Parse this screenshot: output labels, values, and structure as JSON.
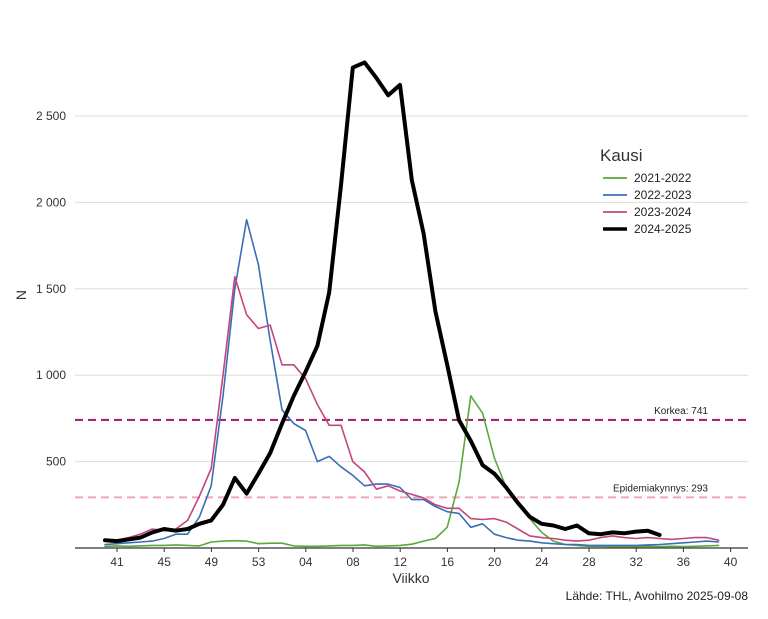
{
  "chart_data": {
    "type": "line",
    "title": "",
    "xlabel": "Viikko",
    "ylabel": "N",
    "caption": "Lähde: THL, Avohilmo 2025-09-08",
    "x_tick_labels": [
      "41",
      "45",
      "49",
      "53",
      "04",
      "08",
      "12",
      "16",
      "20",
      "24",
      "28",
      "32",
      "36",
      "40"
    ],
    "y_ticks": [
      500,
      1000,
      1500,
      2000,
      2500
    ],
    "y_tick_labels": [
      "500",
      "1 000",
      "1 500",
      "2 000",
      "2 500"
    ],
    "ylim": [
      0,
      2800
    ],
    "xlim": [
      1,
      53
    ],
    "grid": "horizontal",
    "legend": {
      "title": "Kausi",
      "position": "right"
    },
    "thresholds": [
      {
        "label": "Korkea: 741",
        "value": 741,
        "color": "#a5247a"
      },
      {
        "label": "Epidemiakynnys: 293",
        "value": 293,
        "color": "#f2a5b5"
      }
    ],
    "series": [
      {
        "name": "2021-2022",
        "color": "#5aa83a",
        "width": 1.6,
        "points": [
          [
            1,
            10
          ],
          [
            2,
            12
          ],
          [
            3,
            10
          ],
          [
            4,
            12
          ],
          [
            5,
            15
          ],
          [
            6,
            15
          ],
          [
            7,
            18
          ],
          [
            8,
            15
          ],
          [
            9,
            12
          ],
          [
            10,
            35
          ],
          [
            11,
            40
          ],
          [
            12,
            42
          ],
          [
            13,
            40
          ],
          [
            14,
            25
          ],
          [
            15,
            28
          ],
          [
            16,
            28
          ],
          [
            17,
            12
          ],
          [
            18,
            10
          ],
          [
            19,
            10
          ],
          [
            20,
            12
          ],
          [
            21,
            15
          ],
          [
            22,
            15
          ],
          [
            23,
            18
          ],
          [
            24,
            10
          ],
          [
            25,
            12
          ],
          [
            26,
            15
          ],
          [
            27,
            22
          ],
          [
            28,
            40
          ],
          [
            29,
            55
          ],
          [
            30,
            120
          ],
          [
            31,
            380
          ],
          [
            32,
            880
          ],
          [
            33,
            780
          ],
          [
            34,
            520
          ],
          [
            35,
            350
          ],
          [
            36,
            260
          ],
          [
            37,
            170
          ],
          [
            38,
            90
          ],
          [
            39,
            40
          ],
          [
            40,
            20
          ],
          [
            41,
            15
          ],
          [
            42,
            10
          ],
          [
            43,
            10
          ],
          [
            44,
            8
          ],
          [
            45,
            8
          ],
          [
            46,
            8
          ],
          [
            47,
            10
          ],
          [
            48,
            8
          ],
          [
            49,
            10
          ],
          [
            50,
            8
          ],
          [
            51,
            10
          ],
          [
            52,
            12
          ],
          [
            53,
            15
          ]
        ]
      },
      {
        "name": "2022-2023",
        "color": "#3a6fb5",
        "width": 1.6,
        "points": [
          [
            1,
            20
          ],
          [
            2,
            25
          ],
          [
            3,
            30
          ],
          [
            4,
            35
          ],
          [
            5,
            40
          ],
          [
            6,
            55
          ],
          [
            7,
            80
          ],
          [
            8,
            80
          ],
          [
            9,
            180
          ],
          [
            10,
            360
          ],
          [
            11,
            880
          ],
          [
            12,
            1500
          ],
          [
            13,
            1900
          ],
          [
            14,
            1640
          ],
          [
            15,
            1200
          ],
          [
            16,
            800
          ],
          [
            17,
            720
          ],
          [
            18,
            680
          ],
          [
            19,
            500
          ],
          [
            20,
            530
          ],
          [
            21,
            470
          ],
          [
            22,
            420
          ],
          [
            23,
            360
          ],
          [
            24,
            370
          ],
          [
            25,
            370
          ],
          [
            26,
            350
          ],
          [
            27,
            280
          ],
          [
            28,
            280
          ],
          [
            29,
            240
          ],
          [
            30,
            210
          ],
          [
            31,
            200
          ],
          [
            32,
            120
          ],
          [
            33,
            140
          ],
          [
            34,
            80
          ],
          [
            35,
            60
          ],
          [
            36,
            45
          ],
          [
            37,
            40
          ],
          [
            38,
            30
          ],
          [
            39,
            25
          ],
          [
            40,
            20
          ],
          [
            41,
            20
          ],
          [
            42,
            15
          ],
          [
            43,
            15
          ],
          [
            44,
            15
          ],
          [
            45,
            15
          ],
          [
            46,
            15
          ],
          [
            47,
            18
          ],
          [
            48,
            20
          ],
          [
            49,
            25
          ],
          [
            50,
            30
          ],
          [
            51,
            35
          ],
          [
            52,
            40
          ],
          [
            53,
            35
          ]
        ]
      },
      {
        "name": "2023-2024",
        "color": "#c4457d",
        "width": 1.6,
        "points": [
          [
            1,
            40
          ],
          [
            2,
            45
          ],
          [
            3,
            60
          ],
          [
            4,
            80
          ],
          [
            5,
            110
          ],
          [
            6,
            100
          ],
          [
            7,
            110
          ],
          [
            8,
            160
          ],
          [
            9,
            300
          ],
          [
            10,
            460
          ],
          [
            11,
            1000
          ],
          [
            12,
            1570
          ],
          [
            13,
            1350
          ],
          [
            14,
            1270
          ],
          [
            15,
            1290
          ],
          [
            16,
            1060
          ],
          [
            17,
            1060
          ],
          [
            18,
            980
          ],
          [
            19,
            830
          ],
          [
            20,
            710
          ],
          [
            21,
            710
          ],
          [
            22,
            500
          ],
          [
            23,
            440
          ],
          [
            24,
            340
          ],
          [
            25,
            360
          ],
          [
            26,
            330
          ],
          [
            27,
            310
          ],
          [
            28,
            290
          ],
          [
            29,
            250
          ],
          [
            30,
            230
          ],
          [
            31,
            230
          ],
          [
            32,
            170
          ],
          [
            33,
            165
          ],
          [
            34,
            170
          ],
          [
            35,
            150
          ],
          [
            36,
            110
          ],
          [
            37,
            70
          ],
          [
            38,
            60
          ],
          [
            39,
            55
          ],
          [
            40,
            45
          ],
          [
            41,
            40
          ],
          [
            42,
            45
          ],
          [
            43,
            60
          ],
          [
            44,
            70
          ],
          [
            45,
            60
          ],
          [
            46,
            55
          ],
          [
            47,
            60
          ],
          [
            48,
            55
          ],
          [
            49,
            50
          ],
          [
            50,
            55
          ],
          [
            51,
            60
          ],
          [
            52,
            60
          ],
          [
            53,
            45
          ]
        ]
      },
      {
        "name": "2024-2025",
        "color": "#000000",
        "width": 4,
        "points": [
          [
            1,
            45
          ],
          [
            2,
            40
          ],
          [
            3,
            50
          ],
          [
            4,
            60
          ],
          [
            5,
            90
          ],
          [
            6,
            110
          ],
          [
            7,
            100
          ],
          [
            8,
            110
          ],
          [
            9,
            140
          ],
          [
            10,
            160
          ],
          [
            11,
            250
          ],
          [
            12,
            405
          ],
          [
            13,
            315
          ],
          [
            14,
            430
          ],
          [
            15,
            550
          ],
          [
            16,
            720
          ],
          [
            17,
            880
          ],
          [
            18,
            1020
          ],
          [
            19,
            1170
          ],
          [
            20,
            1480
          ],
          [
            21,
            2100
          ],
          [
            22,
            2780
          ],
          [
            23,
            2810
          ],
          [
            24,
            2720
          ],
          [
            25,
            2620
          ],
          [
            26,
            2680
          ],
          [
            27,
            2130
          ],
          [
            28,
            1820
          ],
          [
            29,
            1370
          ],
          [
            30,
            1060
          ],
          [
            31,
            740
          ],
          [
            32,
            620
          ],
          [
            33,
            480
          ],
          [
            34,
            430
          ],
          [
            35,
            350
          ],
          [
            36,
            260
          ],
          [
            37,
            180
          ],
          [
            38,
            140
          ],
          [
            39,
            130
          ],
          [
            40,
            110
          ],
          [
            41,
            130
          ],
          [
            42,
            85
          ],
          [
            43,
            80
          ],
          [
            44,
            90
          ],
          [
            45,
            85
          ],
          [
            46,
            95
          ],
          [
            47,
            100
          ],
          [
            48,
            75
          ]
        ]
      }
    ]
  }
}
